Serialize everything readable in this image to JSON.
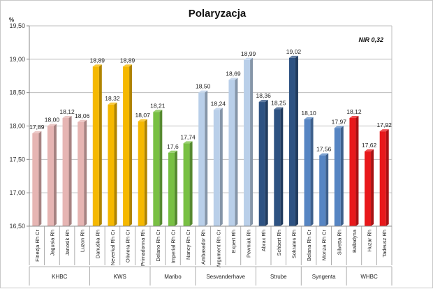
{
  "chart_data": {
    "type": "bar",
    "title": "Polaryzacja",
    "unit": "%",
    "annotation": "NIR 0,32",
    "ylim": [
      16.5,
      19.5
    ],
    "yticks": [
      "16,50",
      "17,00",
      "17,50",
      "18,00",
      "18,50",
      "19,00",
      "19,50"
    ],
    "yticks_values": [
      16.5,
      17.0,
      17.5,
      18.0,
      18.5,
      19.0,
      19.5
    ],
    "grid": true,
    "legend": "none",
    "categories": [
      "Finezja Rh Cr",
      "Jagusia Rh",
      "Janosik Rh",
      "Luzon Rh",
      "Danuśka Rh",
      "Neverkal Rh Cr",
      "Oliviera Rh Cr",
      "Primadonna Rh",
      "Delano Rh Cr",
      "Imperial Rh Cr",
      "Nancy Rh Cr",
      "Ambasador Rh",
      "Argument Rh Cr",
      "Expert Rh",
      "Pewniak Rh",
      "Abrax Rh",
      "Schbert Rh",
      "Sokrates Rh",
      "Belana Rh Cr",
      "Monza Rh Cr",
      "Silvetta Rh",
      "Balladyna",
      "Huzar Rh",
      "Tadeusz Rh"
    ],
    "values": [
      17.89,
      18.0,
      18.12,
      18.06,
      18.89,
      18.32,
      18.89,
      18.07,
      18.21,
      17.6,
      17.74,
      18.5,
      18.24,
      18.69,
      18.99,
      18.36,
      18.25,
      19.02,
      18.1,
      17.56,
      17.97,
      18.12,
      17.62,
      17.92
    ],
    "value_labels": [
      "17,89",
      "18,00",
      "18,12",
      "18,06",
      "18,89",
      "18,32",
      "18,89",
      "18,07",
      "18,21",
      "17,6",
      "17,74",
      "18,50",
      "18,24",
      "18,69",
      "18,99",
      "18,36",
      "18,25",
      "19,02",
      "18,10",
      "17,56",
      "17,97",
      "18,12",
      "17,62",
      "17,92"
    ],
    "groups": [
      {
        "name": "KHBC",
        "count": 4,
        "color": "#e6b5b3"
      },
      {
        "name": "KWS",
        "count": 4,
        "color": "#f5b800"
      },
      {
        "name": "Maribo",
        "count": 3,
        "color": "#78c043"
      },
      {
        "name": "Sesvanderhave",
        "count": 4,
        "color": "#b9cfe9"
      },
      {
        "name": "Strube",
        "count": 3,
        "color": "#2d5282"
      },
      {
        "name": "Syngenta",
        "count": 3,
        "color": "#5685c3"
      },
      {
        "name": "WHBC",
        "count": 3,
        "color": "#e8181b"
      }
    ]
  }
}
